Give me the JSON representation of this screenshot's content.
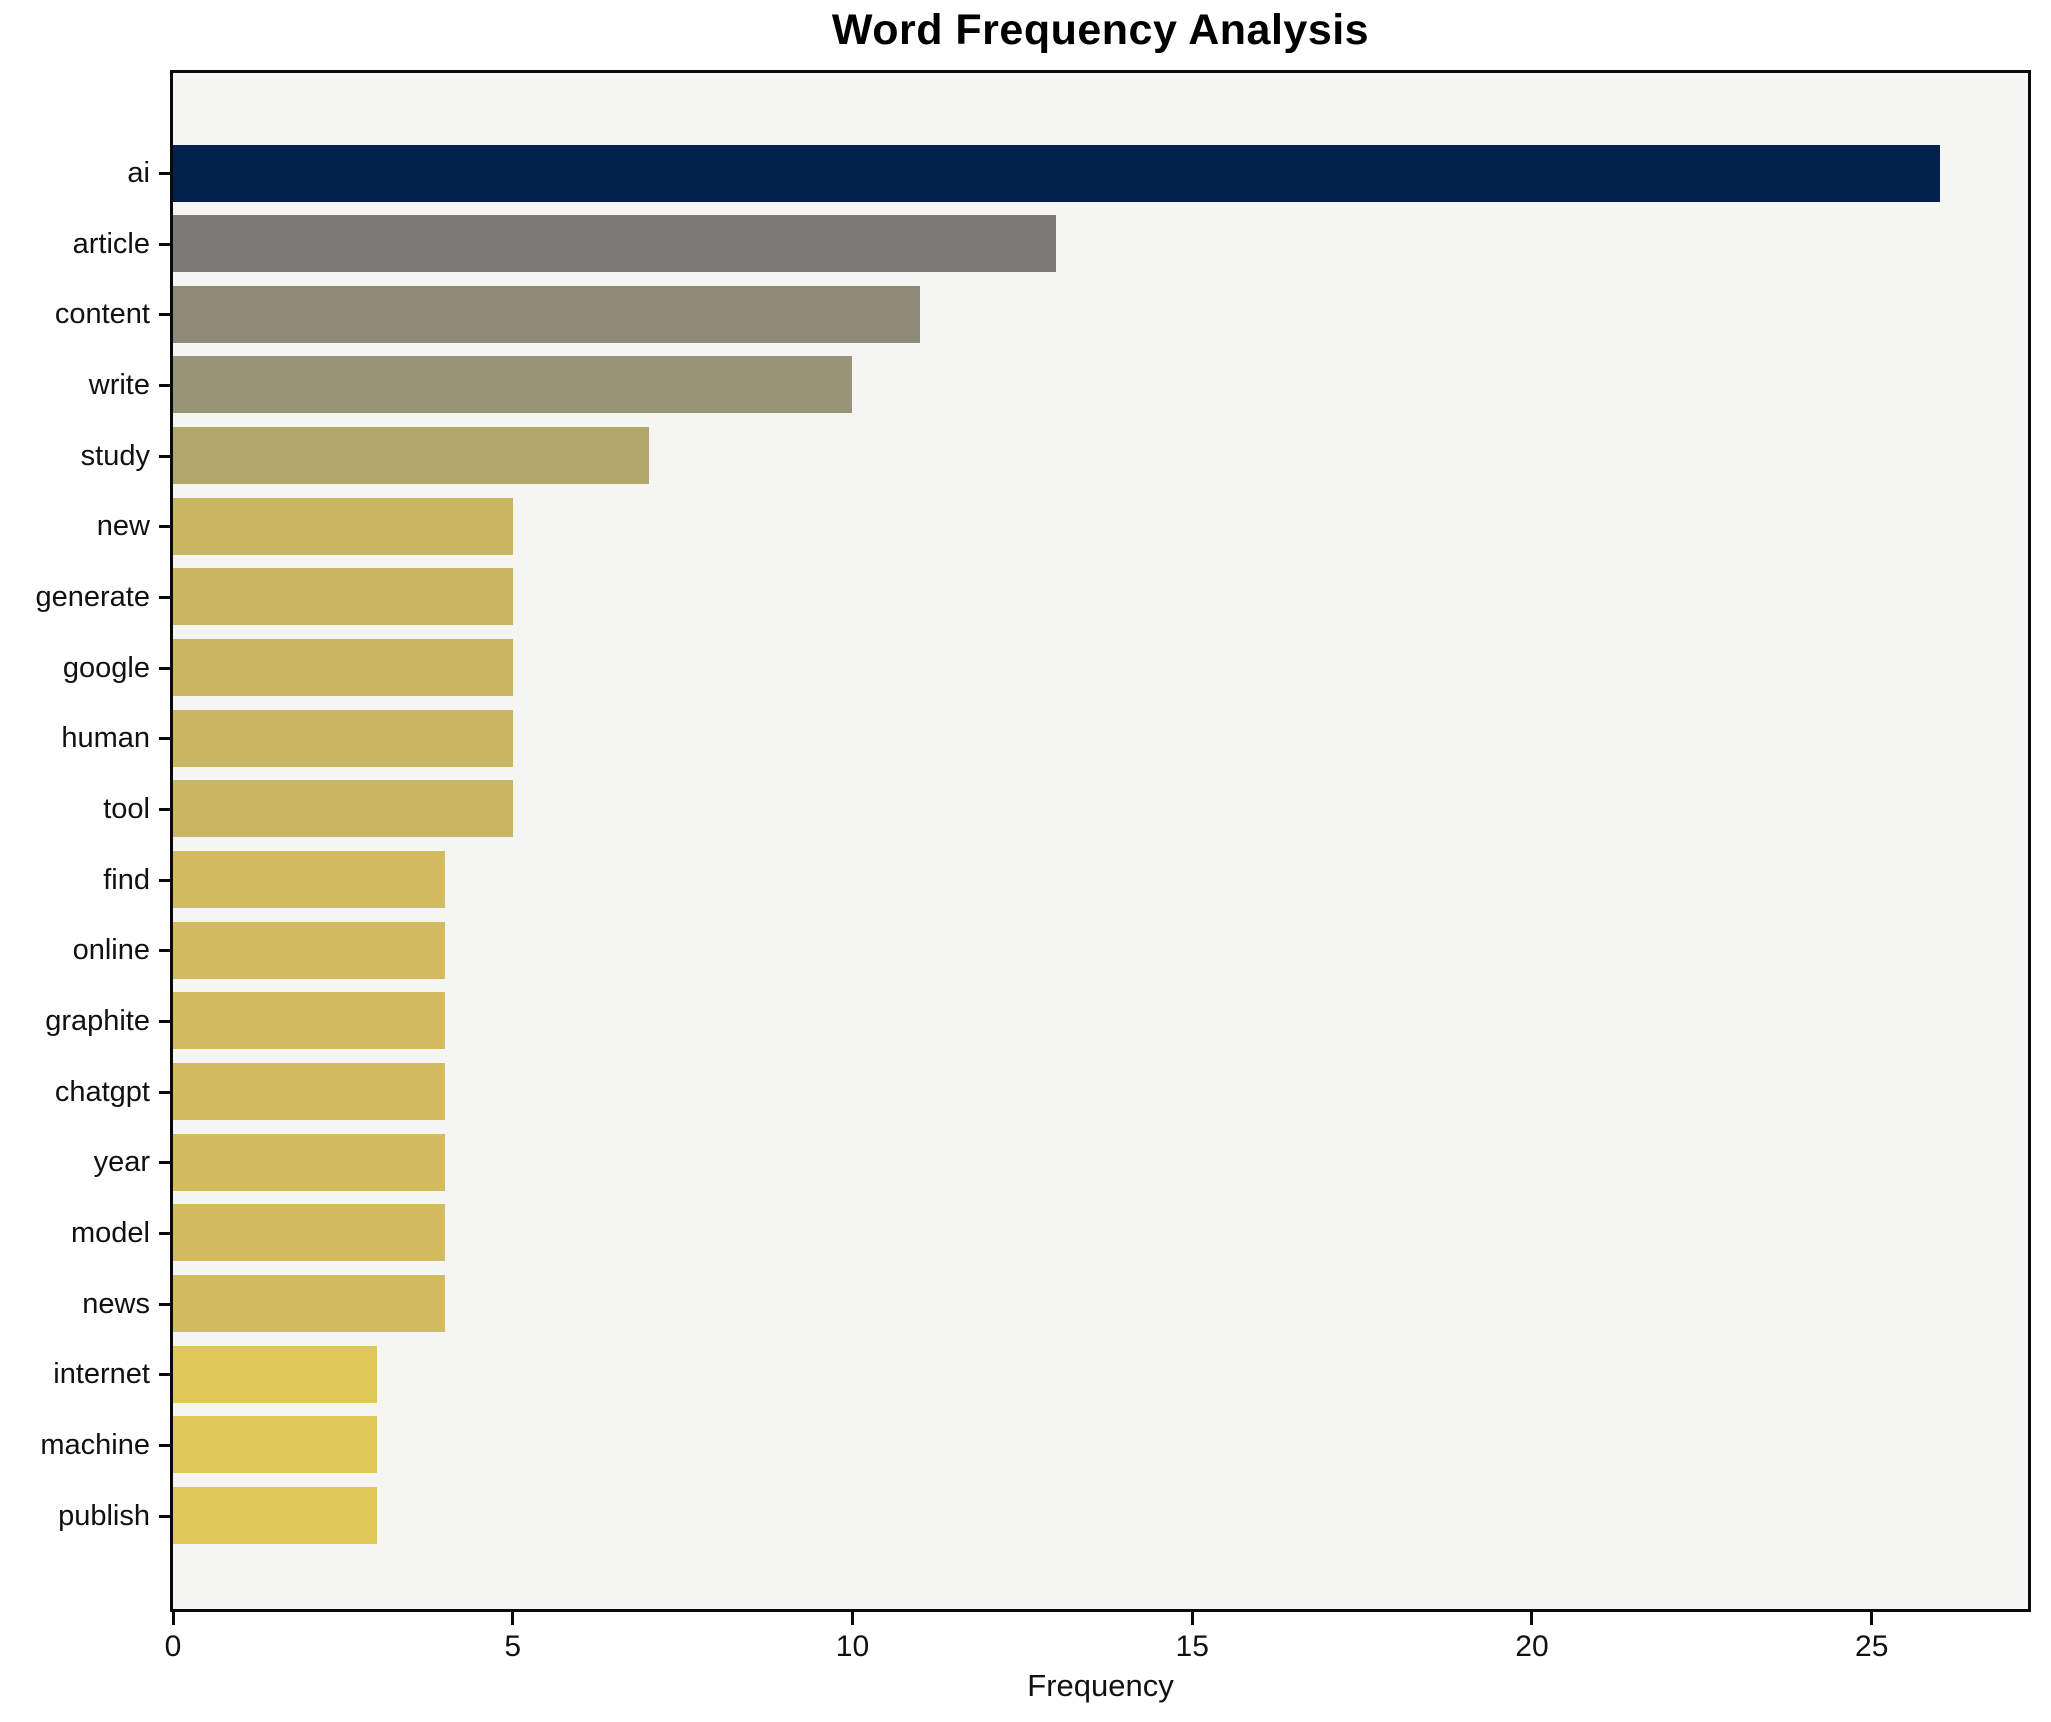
{
  "chart_data": {
    "type": "bar",
    "orientation": "horizontal",
    "title": "Word Frequency Analysis",
    "xlabel": "Frequency",
    "ylabel": "",
    "categories": [
      "ai",
      "article",
      "content",
      "write",
      "study",
      "new",
      "generate",
      "google",
      "human",
      "tool",
      "find",
      "online",
      "graphite",
      "chatgpt",
      "year",
      "model",
      "news",
      "internet",
      "machine",
      "publish"
    ],
    "values": [
      26,
      13,
      11,
      10,
      7,
      5,
      5,
      5,
      5,
      5,
      4,
      4,
      4,
      4,
      4,
      4,
      4,
      3,
      3,
      3
    ],
    "bar_colors": [
      "#02224d",
      "#7b7a78",
      "#8f8a78",
      "#999377",
      "#b2a76a",
      "#c9b662",
      "#c9b662",
      "#c9b662",
      "#c9b662",
      "#c9b662",
      "#d2bc5f",
      "#d2bc5f",
      "#d2bc5f",
      "#d2bc5f",
      "#d2bc5f",
      "#d2bc5f",
      "#d2bc5f",
      "#dfc857",
      "#dfc857",
      "#dfc857"
    ],
    "xlim": [
      0,
      27.3
    ],
    "x_ticks": [
      0,
      5,
      10,
      15,
      20,
      25
    ],
    "grid": false,
    "legend": false,
    "plot_bg_color": "#f5f5f3",
    "figure_bg_color": "#ffffff",
    "axis_color": "#0a0a0a",
    "text_color": "#111111"
  }
}
